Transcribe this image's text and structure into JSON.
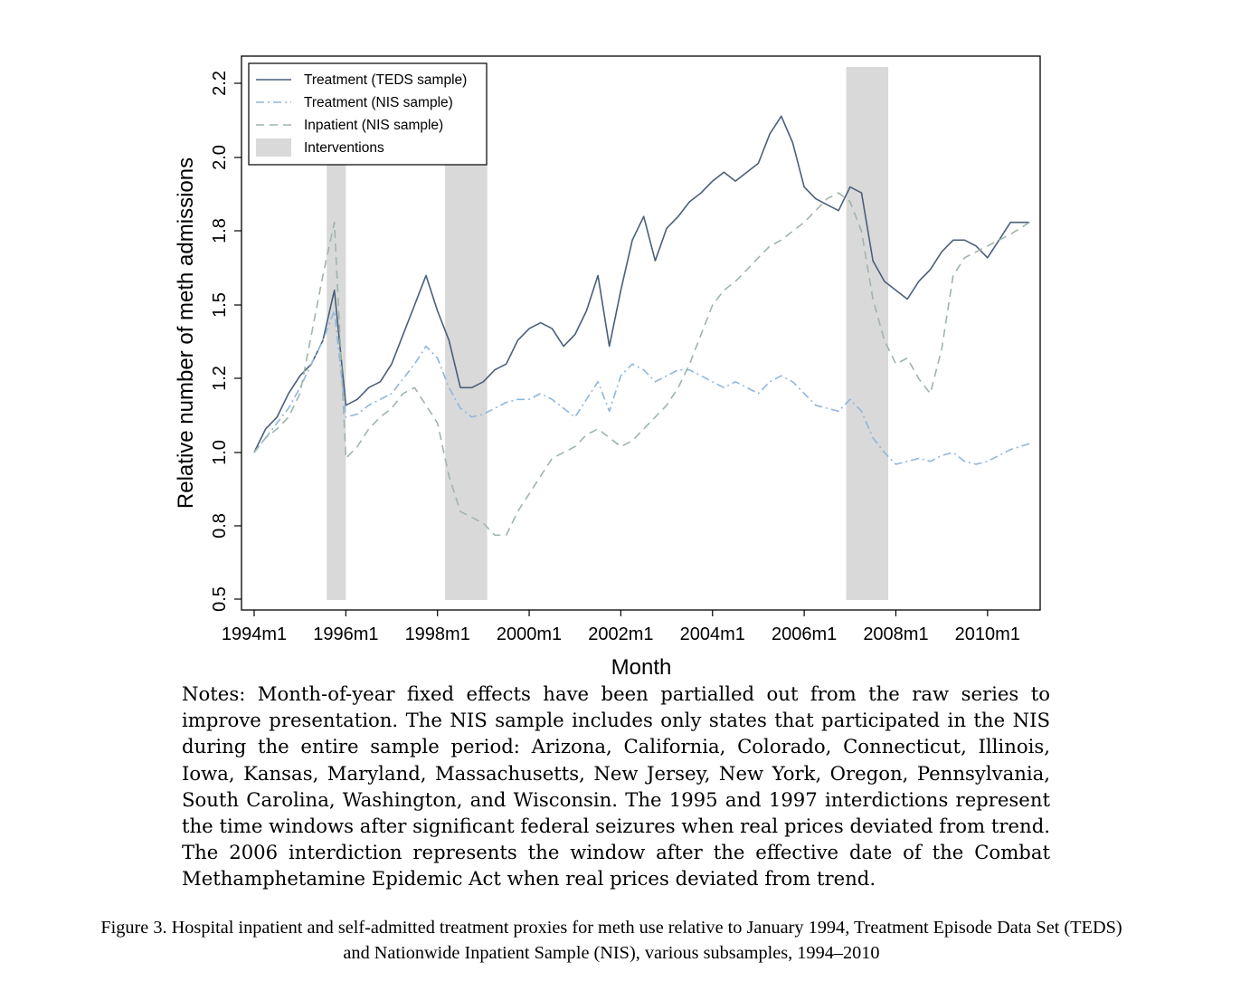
{
  "chart_data": {
    "type": "line",
    "xlabel": "Month",
    "ylabel": "Relative number of meth admissions",
    "xlim": [
      "1994m1",
      "2010m12"
    ],
    "ylim": [
      0.5,
      2.25
    ],
    "x_ticks": [
      "1994m1",
      "1996m1",
      "1998m1",
      "2000m1",
      "2002m1",
      "2004m1",
      "2006m1",
      "2008m1",
      "2010m1"
    ],
    "y_ticks": [
      "0.5",
      "0.8",
      "1.0",
      "1.2",
      "1.5",
      "1.8",
      "2.0",
      "2.2"
    ],
    "grid": false,
    "legend_position": "top-left",
    "legend": [
      {
        "label": "Treatment (TEDS sample)",
        "style": "solid",
        "color": "#4a5f7a"
      },
      {
        "label": "Treatment (NIS sample)",
        "style": "dash-dot",
        "color": "#8fb7dc"
      },
      {
        "label": "Inpatient (NIS sample)",
        "style": "dashed",
        "color": "#9fb5aa"
      },
      {
        "label": "Interventions",
        "style": "area",
        "color": "#d9d9d9"
      }
    ],
    "interventions": [
      {
        "start": "1995m8",
        "end": "1996m1"
      },
      {
        "start": "1998m3",
        "end": "1999m2"
      },
      {
        "start": "2006m12",
        "end": "2007m11"
      }
    ],
    "series": [
      {
        "name": "Treatment (TEDS sample)",
        "color": "#4a5f7a",
        "x": [
          "1994m1",
          "1994m4",
          "1994m7",
          "1994m10",
          "1995m1",
          "1995m4",
          "1995m7",
          "1995m10",
          "1996m1",
          "1996m4",
          "1996m7",
          "1996m10",
          "1997m1",
          "1997m4",
          "1997m7",
          "1997m10",
          "1998m1",
          "1998m4",
          "1998m7",
          "1998m10",
          "1999m1",
          "1999m4",
          "1999m7",
          "1999m10",
          "2000m1",
          "2000m4",
          "2000m7",
          "2000m10",
          "2001m1",
          "2001m4",
          "2001m7",
          "2001m10",
          "2002m1",
          "2002m4",
          "2002m7",
          "2002m10",
          "2003m1",
          "2003m4",
          "2003m7",
          "2003m10",
          "2004m1",
          "2004m4",
          "2004m7",
          "2004m10",
          "2005m1",
          "2005m4",
          "2005m7",
          "2005m10",
          "2006m1",
          "2006m4",
          "2006m7",
          "2006m10",
          "2007m1",
          "2007m4",
          "2007m7",
          "2007m10",
          "2008m1",
          "2008m4",
          "2008m7",
          "2008m10",
          "2009m1",
          "2009m4",
          "2009m7",
          "2009m10",
          "2010m1",
          "2010m4",
          "2010m7",
          "2010m12"
        ],
        "values": [
          1.0,
          1.08,
          1.12,
          1.2,
          1.26,
          1.3,
          1.38,
          1.55,
          1.16,
          1.18,
          1.22,
          1.24,
          1.3,
          1.4,
          1.5,
          1.6,
          1.48,
          1.38,
          1.22,
          1.22,
          1.24,
          1.28,
          1.3,
          1.38,
          1.42,
          1.44,
          1.42,
          1.36,
          1.4,
          1.48,
          1.6,
          1.36,
          1.55,
          1.72,
          1.8,
          1.65,
          1.76,
          1.8,
          1.85,
          1.88,
          1.92,
          1.95,
          1.92,
          1.95,
          1.98,
          2.08,
          2.14,
          2.05,
          1.9,
          1.86,
          1.84,
          1.82,
          1.9,
          1.88,
          1.65,
          1.58,
          1.55,
          1.52,
          1.58,
          1.62,
          1.68,
          1.72,
          1.72,
          1.7,
          1.66,
          1.72,
          1.78,
          1.78
        ]
      },
      {
        "name": "Treatment (NIS sample)",
        "color": "#8fb7dc",
        "x": [
          "1994m1",
          "1994m4",
          "1994m7",
          "1994m10",
          "1995m1",
          "1995m4",
          "1995m7",
          "1995m10",
          "1996m1",
          "1996m4",
          "1996m7",
          "1996m10",
          "1997m1",
          "1997m4",
          "1997m7",
          "1997m10",
          "1998m1",
          "1998m4",
          "1998m7",
          "1998m10",
          "1999m1",
          "1999m4",
          "1999m7",
          "1999m10",
          "2000m1",
          "2000m4",
          "2000m7",
          "2000m10",
          "2001m1",
          "2001m4",
          "2001m7",
          "2001m10",
          "2002m1",
          "2002m4",
          "2002m7",
          "2002m10",
          "2003m1",
          "2003m4",
          "2003m7",
          "2003m10",
          "2004m1",
          "2004m4",
          "2004m7",
          "2004m10",
          "2005m1",
          "2005m4",
          "2005m7",
          "2005m10",
          "2006m1",
          "2006m4",
          "2006m7",
          "2006m10",
          "2007m1",
          "2007m4",
          "2007m7",
          "2007m10",
          "2008m1",
          "2008m4",
          "2008m7",
          "2008m10",
          "2009m1",
          "2009m4",
          "2009m7",
          "2009m10",
          "2010m1",
          "2010m4",
          "2010m7",
          "2010m12"
        ],
        "values": [
          1.0,
          1.05,
          1.1,
          1.15,
          1.22,
          1.3,
          1.38,
          1.48,
          1.12,
          1.13,
          1.16,
          1.18,
          1.2,
          1.25,
          1.3,
          1.36,
          1.32,
          1.22,
          1.15,
          1.12,
          1.13,
          1.15,
          1.17,
          1.18,
          1.18,
          1.2,
          1.18,
          1.15,
          1.12,
          1.18,
          1.24,
          1.14,
          1.26,
          1.3,
          1.28,
          1.24,
          1.26,
          1.28,
          1.28,
          1.26,
          1.24,
          1.22,
          1.24,
          1.22,
          1.2,
          1.24,
          1.26,
          1.24,
          1.2,
          1.16,
          1.15,
          1.14,
          1.18,
          1.14,
          1.05,
          1.0,
          0.96,
          0.97,
          0.98,
          0.97,
          0.99,
          1.0,
          0.97,
          0.96,
          0.97,
          0.99,
          1.01,
          1.03
        ]
      },
      {
        "name": "Inpatient (NIS sample)",
        "color": "#9fb5aa",
        "x": [
          "1994m1",
          "1994m4",
          "1994m7",
          "1994m10",
          "1995m1",
          "1995m4",
          "1995m7",
          "1995m10",
          "1996m1",
          "1996m4",
          "1996m7",
          "1996m10",
          "1997m1",
          "1997m4",
          "1997m7",
          "1997m10",
          "1998m1",
          "1998m4",
          "1998m7",
          "1998m10",
          "1999m1",
          "1999m4",
          "1999m7",
          "1999m10",
          "2000m1",
          "2000m4",
          "2000m7",
          "2000m10",
          "2001m1",
          "2001m4",
          "2001m7",
          "2001m10",
          "2002m1",
          "2002m4",
          "2002m7",
          "2002m10",
          "2003m1",
          "2003m4",
          "2003m7",
          "2003m10",
          "2004m1",
          "2004m4",
          "2004m7",
          "2004m10",
          "2005m1",
          "2005m4",
          "2005m7",
          "2005m10",
          "2006m1",
          "2006m4",
          "2006m7",
          "2006m10",
          "2007m1",
          "2007m4",
          "2007m7",
          "2007m10",
          "2008m1",
          "2008m4",
          "2008m7",
          "2008m10",
          "2009m1",
          "2009m4",
          "2009m7",
          "2009m10",
          "2010m1",
          "2010m4",
          "2010m7",
          "2010m12"
        ],
        "values": [
          1.0,
          1.05,
          1.08,
          1.12,
          1.2,
          1.4,
          1.6,
          1.78,
          0.98,
          1.02,
          1.08,
          1.12,
          1.15,
          1.2,
          1.22,
          1.16,
          1.1,
          0.92,
          0.8,
          0.78,
          0.76,
          0.72,
          0.72,
          0.8,
          0.86,
          0.92,
          0.98,
          1.0,
          1.02,
          1.06,
          1.08,
          1.05,
          1.02,
          1.04,
          1.08,
          1.12,
          1.16,
          1.22,
          1.3,
          1.4,
          1.5,
          1.55,
          1.58,
          1.62,
          1.66,
          1.7,
          1.72,
          1.75,
          1.78,
          1.82,
          1.86,
          1.88,
          1.85,
          1.75,
          1.52,
          1.38,
          1.3,
          1.32,
          1.25,
          1.2,
          1.35,
          1.6,
          1.66,
          1.68,
          1.7,
          1.72,
          1.74,
          1.78
        ]
      }
    ]
  },
  "notes": "Notes: Month-of-year fixed effects have been partialled out from the raw series to improve presentation.  The NIS sample includes only states that participated in the NIS during the entire sample period:  Arizona, California, Colorado, Connecticut, Illinois, Iowa, Kansas, Maryland, Massachusetts, New Jersey, New York, Oregon, Pennsylvania, South Carolina, Washington, and Wisconsin.  The 1995 and 1997 interdictions represent the time windows after significant federal seizures when real prices deviated from trend.  The 2006 interdiction represents the window after the effective date of the Combat Methamphetamine Epidemic Act when real prices deviated from trend.",
  "caption": {
    "line1": "Figure 3.  Hospital inpatient and self-admitted treatment proxies for meth use relative to January 1994, Treatment Episode Data Set (TEDS)",
    "line2": "and Nationwide Inpatient Sample (NIS), various subsamples, 1994–2010"
  }
}
